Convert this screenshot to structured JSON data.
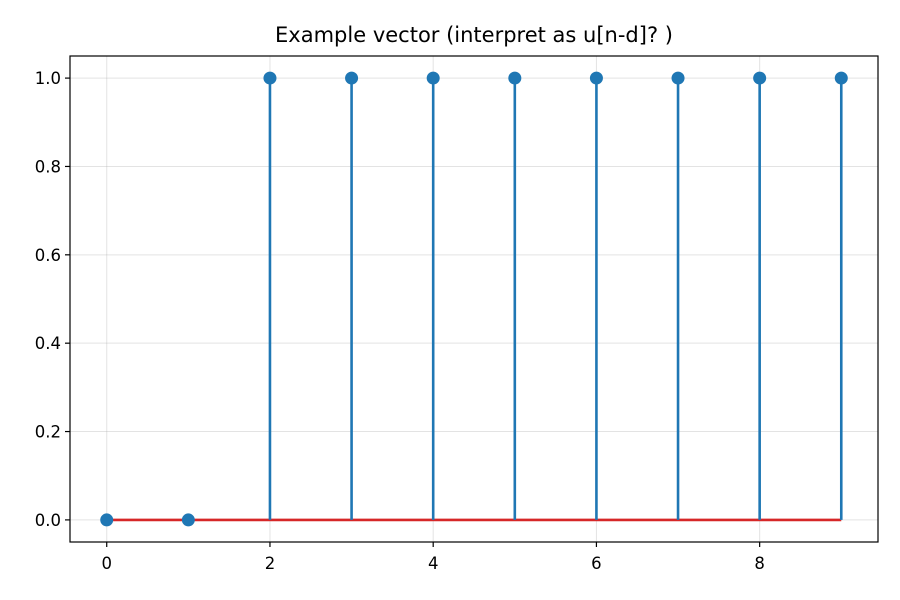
{
  "chart_data": {
    "type": "stem",
    "title": "Example vector (interpret as u[n-d]? )",
    "xlabel": "",
    "ylabel": "",
    "x": [
      0,
      1,
      2,
      3,
      4,
      5,
      6,
      7,
      8,
      9
    ],
    "y": [
      0,
      0,
      1,
      1,
      1,
      1,
      1,
      1,
      1,
      1
    ],
    "xlim": [
      -0.45,
      9.45
    ],
    "ylim": [
      -0.05,
      1.05
    ],
    "xticks": [
      0,
      2,
      4,
      6,
      8
    ],
    "xtick_labels": [
      "0",
      "2",
      "4",
      "6",
      "8"
    ],
    "yticks": [
      0.0,
      0.2,
      0.4,
      0.6,
      0.8,
      1.0
    ],
    "ytick_labels": [
      "0.0",
      "0.2",
      "0.4",
      "0.6",
      "0.8",
      "1.0"
    ],
    "grid": true,
    "colors": {
      "stem": "#1f77b4",
      "marker": "#1f77b4",
      "baseline": "#d62728"
    }
  }
}
